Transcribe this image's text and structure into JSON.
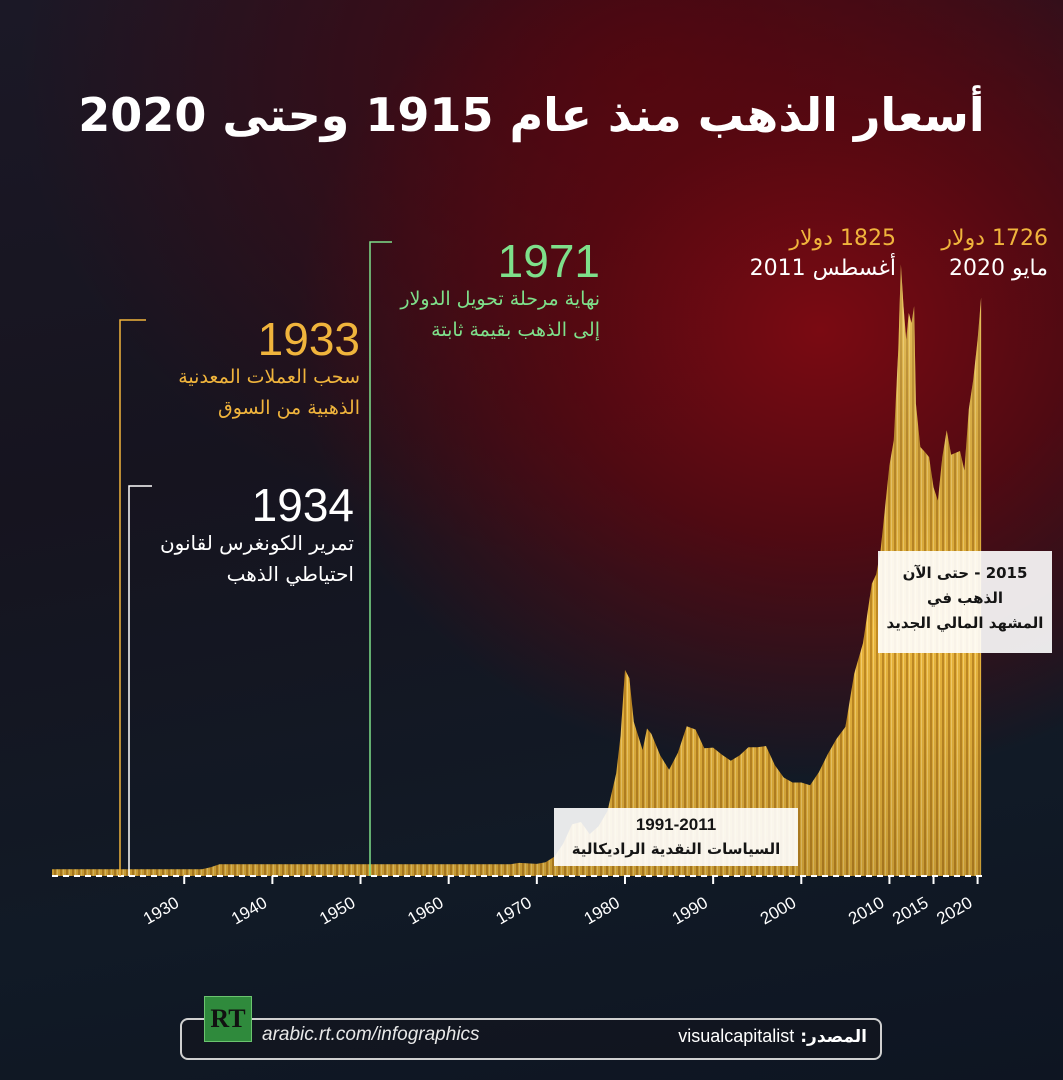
{
  "title": "أسعار الذهب منذ عام 1915 وحتى 2020",
  "annotations": {
    "a1933": {
      "year": "1933",
      "line1": "سحب العملات المعدنية",
      "line2": "الذهبية من السوق"
    },
    "a1934": {
      "year": "1934",
      "line1": "تمرير الكونغرس لقانون",
      "line2": "احتياطي الذهب"
    },
    "a1971": {
      "year": "1971",
      "line1": "نهاية مرحلة تحويل الدولار",
      "line2": "إلى الذهب بقيمة ثابتة"
    },
    "peak_2011": {
      "price": "1825 دولار",
      "date": "أغسطس 2011"
    },
    "peak_2020": {
      "price": "1726 دولار",
      "date": "مايو 2020"
    },
    "box_2015": {
      "line1": "2015 - حتى الآن",
      "line2": "الذهب في",
      "line3": "المشهد المالي الجديد"
    },
    "box_1991": {
      "line1": "1991-2011",
      "line2": "السياسات النقدية الراديكالية"
    }
  },
  "footer": {
    "logo": "RT",
    "url": "arabic.rt.com/infographics",
    "source_label": "المصدر:",
    "source_value": "visualcapitalist"
  },
  "colors": {
    "gold": "#e6b23a",
    "annotation_1933": "#f0b43c",
    "annotation_1934": "#ffffff",
    "annotation_1971": "#7ee08a"
  },
  "chart_data": {
    "type": "area",
    "xlabel": "",
    "ylabel": "",
    "x_ticks": [
      "1930",
      "1940",
      "1950",
      "1960",
      "1970",
      "1980",
      "1990",
      "2000",
      "2010",
      "2015",
      "2020"
    ],
    "xlim": [
      1915,
      2020.5
    ],
    "ylim": [
      0,
      1850
    ],
    "grid": false,
    "series": [
      {
        "x": [
          1915,
          1932,
          1933,
          1934,
          1940,
          1950,
          1960,
          1967,
          1968,
          1970,
          1971,
          1972,
          1973,
          1974,
          1975,
          1976,
          1977,
          1978,
          1979,
          1979.5,
          1980,
          1980.5,
          1981,
          1982,
          1982.5,
          1983,
          1984,
          1985,
          1986,
          1987,
          1988,
          1989,
          1990,
          1991,
          1992,
          1993,
          1994,
          1995,
          1996,
          1997,
          1998,
          1999,
          2000,
          2001,
          2002,
          2003,
          2004,
          2005,
          2006,
          2007,
          2008,
          2008.5,
          2009,
          2010,
          2010.5,
          2011,
          2011.3,
          2011.6,
          2011.9,
          2012.2,
          2012.5,
          2012.8,
          2013,
          2013.5,
          2014,
          2014.5,
          2015,
          2015.5,
          2016,
          2016.5,
          2017,
          2018,
          2018.5,
          2019,
          2019.5,
          2020,
          2020.4
        ],
        "values": [
          20,
          20,
          26,
          35,
          35,
          35,
          35,
          35,
          39,
          36,
          41,
          58,
          97,
          154,
          161,
          125,
          148,
          193,
          306,
          420,
          615,
          590,
          460,
          376,
          440,
          424,
          360,
          317,
          368,
          447,
          437,
          381,
          383,
          362,
          344,
          360,
          384,
          384,
          388,
          331,
          294,
          279,
          279,
          271,
          310,
          363,
          409,
          445,
          604,
          695,
          872,
          900,
          972,
          1225,
          1300,
          1571,
          1825,
          1700,
          1600,
          1680,
          1650,
          1700,
          1410,
          1280,
          1266,
          1250,
          1160,
          1120,
          1250,
          1330,
          1257,
          1268,
          1210,
          1393,
          1480,
          1600,
          1726
        ]
      }
    ]
  }
}
